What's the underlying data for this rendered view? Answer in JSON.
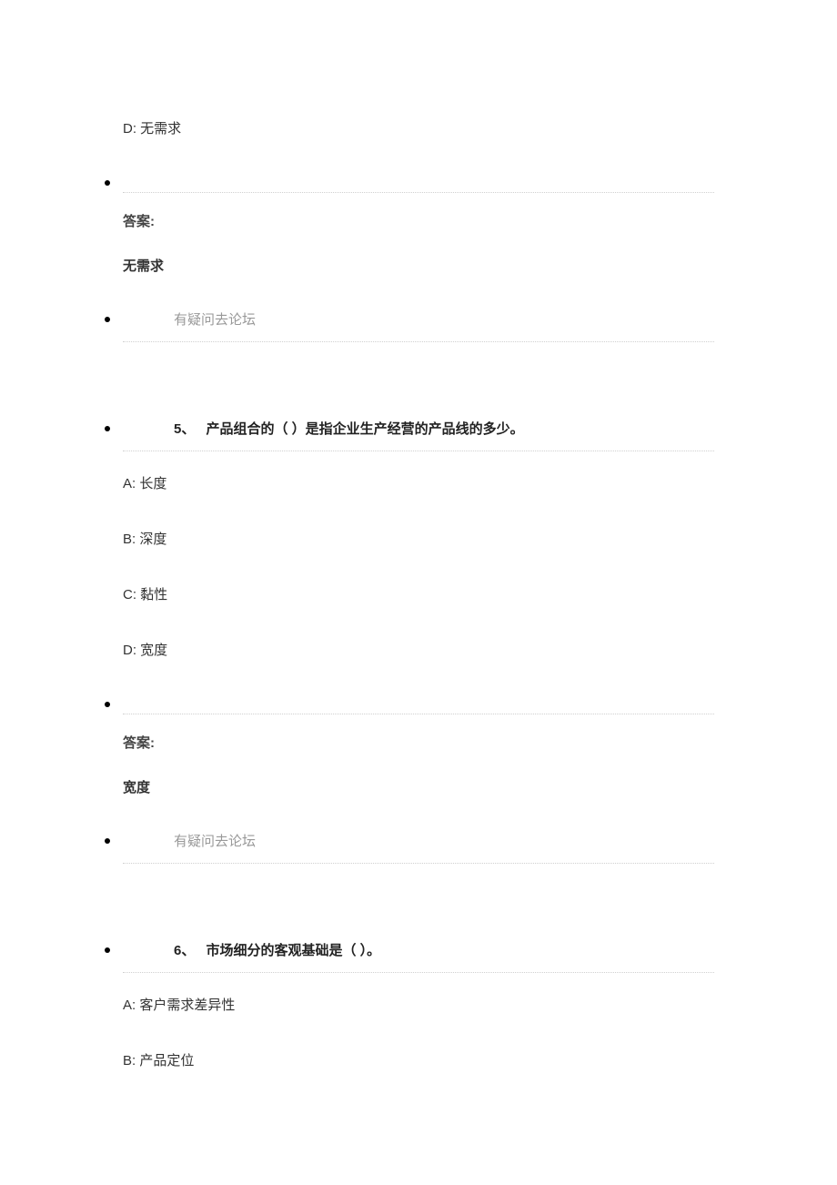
{
  "q4_partial": {
    "options": {
      "d": {
        "label": "D:",
        "text": "无需求"
      }
    },
    "answer_label": "答案:",
    "answer_value": "无需求",
    "forum_link": "有疑问去论坛"
  },
  "q5": {
    "number": "5、",
    "title": "产品组合的（   ）是指企业生产经营的产品线的多少。",
    "options": {
      "a": {
        "label": "A:",
        "text": "长度"
      },
      "b": {
        "label": "B:",
        "text": "深度"
      },
      "c": {
        "label": "C:",
        "text": "黏性"
      },
      "d": {
        "label": "D:",
        "text": "宽度"
      }
    },
    "answer_label": "答案:",
    "answer_value": "宽度",
    "forum_link": "有疑问去论坛"
  },
  "q6": {
    "number": "6、",
    "title": "市场细分的客观基础是（   ）。",
    "options": {
      "a": {
        "label": "A:",
        "text": "客户需求差异性"
      },
      "b": {
        "label": "B:",
        "text": "产品定位"
      }
    }
  }
}
